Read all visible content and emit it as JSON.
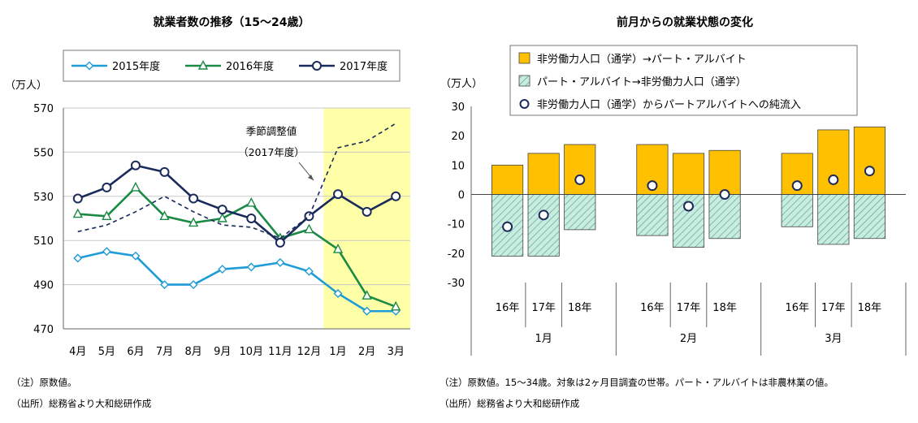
{
  "chart_data": [
    {
      "type": "line",
      "title": "就業者数の推移（15～24歳）",
      "ylabel": "（万人）",
      "categories": [
        "4月",
        "5月",
        "6月",
        "7月",
        "8月",
        "9月",
        "10月",
        "11月",
        "12月",
        "1月",
        "2月",
        "3月"
      ],
      "ylim": [
        470,
        570
      ],
      "yticks": [
        "570",
        "550",
        "530",
        "510",
        "490",
        "470"
      ],
      "series": [
        {
          "name": "2015年度",
          "color": "#1f9bd7",
          "marker": "diamond",
          "values": [
            502,
            505,
            503,
            490,
            490,
            497,
            498,
            500,
            496,
            486,
            478,
            478
          ]
        },
        {
          "name": "2016年度",
          "color": "#1a8a44",
          "marker": "triangle",
          "values": [
            522,
            521,
            534,
            521,
            518,
            520,
            527,
            511,
            515,
            506,
            485,
            480
          ]
        },
        {
          "name": "2017年度",
          "color": "#1a2a5a",
          "marker": "circle",
          "values": [
            529,
            534,
            544,
            541,
            529,
            524,
            520,
            509,
            521,
            531,
            523,
            530
          ]
        },
        {
          "name": "季節調整値（2017年度）",
          "style": "dashed",
          "color": "#1a2a5a",
          "values": [
            514,
            517,
            523,
            530,
            523,
            517,
            516,
            511,
            521,
            552,
            555,
            563
          ]
        }
      ],
      "highlight_range": [
        "1月",
        "3月"
      ],
      "highlight_color": "#ffffa8",
      "annotation": {
        "line1": "季節調整値",
        "line2": "（2017年度）"
      },
      "legend": "top",
      "note": "（注）原数値。",
      "source": "（出所）総務省より大和総研作成"
    },
    {
      "type": "bar",
      "title": "前月からの就業状態の変化",
      "ylabel": "（万人）",
      "ylim": [
        -30,
        30
      ],
      "yticks": [
        "30",
        "20",
        "10",
        "0",
        "-10",
        "-20",
        "-30"
      ],
      "groups": [
        {
          "label": "1月",
          "categories": [
            "16年",
            "17年",
            "18年"
          ]
        },
        {
          "label": "2月",
          "categories": [
            "16年",
            "17年",
            "18年"
          ]
        },
        {
          "label": "3月",
          "categories": [
            "16年",
            "17年",
            "18年"
          ]
        }
      ],
      "series": [
        {
          "name": "非労働力人口（通学）→パート・アルバイト",
          "color": "#ffc000",
          "values": [
            10,
            14,
            17,
            17,
            14,
            15,
            14,
            22,
            23
          ]
        },
        {
          "name": "パート・アルバイト→非労働力人口（通学）",
          "color": "#a8d8c8",
          "pattern": "hatched",
          "values": [
            -21,
            -21,
            -12,
            -14,
            -18,
            -15,
            -11,
            -17,
            -15
          ]
        },
        {
          "name": "非労働力人口（通学）からパートアルバイトへの純流入",
          "marker": "circle",
          "values": [
            -11,
            -7,
            5,
            3,
            -4,
            0,
            3,
            5,
            8
          ]
        }
      ],
      "legend": "top",
      "note": "（注）原数値。15～34歳。対象は2ヶ月目調査の世帯。パート・アルバイトは非農林業の値。",
      "source": "（出所）総務省より大和総研作成"
    }
  ]
}
